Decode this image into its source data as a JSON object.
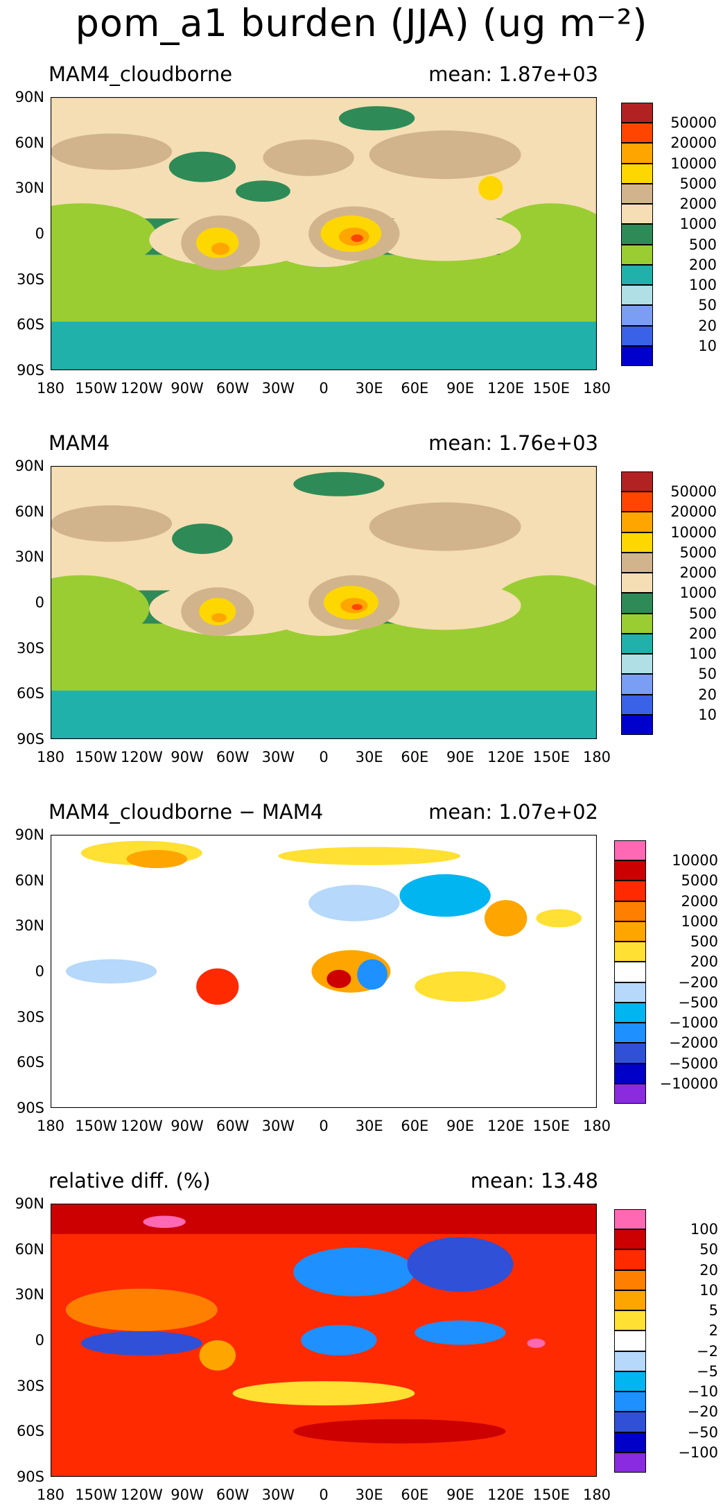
{
  "title": "pom_a1 burden (JJA) (ug m⁻²)",
  "lat_labels": [
    "90N",
    "60N",
    "30N",
    "0",
    "30S",
    "60S",
    "90S"
  ],
  "lon_labels": [
    "180",
    "150W",
    "120W",
    "90W",
    "60W",
    "30W",
    "0",
    "30E",
    "60E",
    "90E",
    "120E",
    "150E",
    "180"
  ],
  "panels": [
    {
      "name": "MAM4_cloudborne",
      "mean": "mean: 1.87e+03",
      "colorbar": {
        "labels": [
          "50000",
          "20000",
          "10000",
          "5000",
          "2000",
          "1000",
          "500",
          "200",
          "100",
          "50",
          "20",
          "10"
        ],
        "colors": [
          "#b22222",
          "#ff4500",
          "#ffa500",
          "#ffd700",
          "#d2b48c",
          "#f5deb3",
          "#2e8b57",
          "#9acd32",
          "#20b2aa",
          "#b0e0e6",
          "#7b9ef5",
          "#3a62e8",
          "#0000cd"
        ]
      }
    },
    {
      "name": "MAM4",
      "mean": "mean: 1.76e+03",
      "colorbar": {
        "labels": [
          "50000",
          "20000",
          "10000",
          "5000",
          "2000",
          "1000",
          "500",
          "200",
          "100",
          "50",
          "20",
          "10"
        ],
        "colors": [
          "#b22222",
          "#ff4500",
          "#ffa500",
          "#ffd700",
          "#d2b48c",
          "#f5deb3",
          "#2e8b57",
          "#9acd32",
          "#20b2aa",
          "#b0e0e6",
          "#7b9ef5",
          "#3a62e8",
          "#0000cd"
        ]
      }
    },
    {
      "name": "MAM4_cloudborne − MAM4",
      "mean": "mean: 1.07e+02",
      "colorbar": {
        "labels": [
          "10000",
          "5000",
          "2000",
          "1000",
          "500",
          "200",
          "−200",
          "−500",
          "−1000",
          "−2000",
          "−5000",
          "−10000"
        ],
        "colors": [
          "#ff69b4",
          "#cc0000",
          "#ff2a00",
          "#ff7f00",
          "#ffa500",
          "#ffe033",
          "#ffffff",
          "#b5d8fb",
          "#00b5f0",
          "#1e90ff",
          "#3050d8",
          "#0000c8",
          "#8a2be2"
        ]
      }
    },
    {
      "name": "relative diff. (%)",
      "mean": "mean: 13.48",
      "colorbar": {
        "labels": [
          "100",
          "50",
          "20",
          "10",
          "5",
          "2",
          "−2",
          "−5",
          "−10",
          "−20",
          "−50",
          "−100"
        ],
        "colors": [
          "#ff69b4",
          "#cc0000",
          "#ff2a00",
          "#ff7f00",
          "#ffa500",
          "#ffe033",
          "#ffffff",
          "#b5d8fb",
          "#00b5f0",
          "#1e90ff",
          "#3050d8",
          "#0000c8",
          "#8a2be2"
        ]
      }
    }
  ]
}
